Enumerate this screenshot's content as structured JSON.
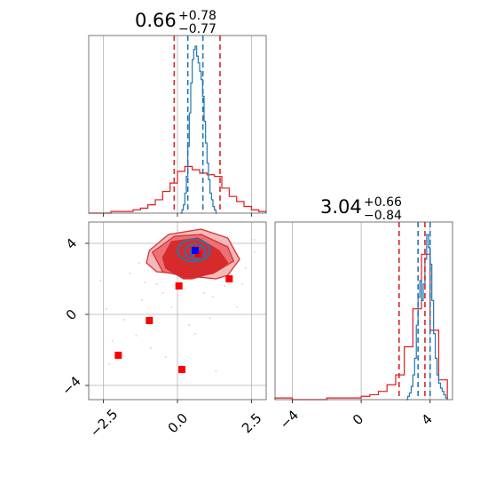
{
  "colors": {
    "red": "#e31a1c",
    "red_dark": "#d62728",
    "blue": "#1f77b4",
    "marker_blue": "#0000ff",
    "marker_red": "#ff0000",
    "grid": "#b0b0b0",
    "axis": "#555555"
  },
  "chart_data": [
    {
      "type": "histogram",
      "panel": "top-left",
      "title_value": "0.66",
      "title_plus": "+0.78",
      "title_minus": "−0.77",
      "xlim": [
        -3.0,
        3.0
      ],
      "grid": true,
      "red_lines": [
        -0.11,
        1.44
      ],
      "blue_lines": [
        0.35,
        0.86
      ],
      "series": [
        {
          "color": "red",
          "bin_edges": [
            -3.0,
            -2.75,
            -2.5,
            -2.25,
            -2.0,
            -1.75,
            -1.5,
            -1.25,
            -1.0,
            -0.75,
            -0.5,
            -0.25,
            0.0,
            0.25,
            0.5,
            0.75,
            1.0,
            1.25,
            1.5,
            1.75,
            2.0,
            2.25,
            2.5,
            2.75,
            3.0
          ],
          "heights": [
            0.0,
            0.0,
            0.0,
            0.01,
            0.01,
            0.01,
            0.02,
            0.03,
            0.05,
            0.08,
            0.13,
            0.18,
            0.25,
            0.28,
            0.26,
            0.24,
            0.23,
            0.22,
            0.15,
            0.1,
            0.07,
            0.04,
            0.02,
            0.01
          ]
        },
        {
          "color": "blue",
          "bin_edges": [
            0.1,
            0.15,
            0.2,
            0.25,
            0.3,
            0.35,
            0.4,
            0.45,
            0.5,
            0.55,
            0.6,
            0.65,
            0.7,
            0.75,
            0.8,
            0.85,
            0.9,
            0.95,
            1.0,
            1.05,
            1.1,
            1.15,
            1.2,
            1.25,
            1.3,
            1.35
          ],
          "heights": [
            0.0,
            0.02,
            0.05,
            0.12,
            0.22,
            0.4,
            0.6,
            0.78,
            0.92,
            0.98,
            1.0,
            0.94,
            0.9,
            0.85,
            0.8,
            0.7,
            0.55,
            0.42,
            0.3,
            0.2,
            0.12,
            0.08,
            0.04,
            0.02,
            0.0
          ]
        }
      ]
    },
    {
      "type": "histogram",
      "panel": "bottom-right",
      "title_value": "3.04",
      "title_plus": "+0.66",
      "title_minus": "−0.84",
      "xlim": [
        -5.0,
        5.3
      ],
      "xticks": [
        -4,
        0,
        4
      ],
      "xtick_labels": [
        "−4",
        "0",
        "4"
      ],
      "grid": true,
      "red_lines": [
        2.2,
        3.7
      ],
      "blue_lines": [
        3.3,
        4.0
      ],
      "series": [
        {
          "color": "red",
          "bin_edges": [
            -5.0,
            -4.5,
            -4.0,
            -3.5,
            -3.0,
            -2.5,
            -2.0,
            -1.5,
            -1.0,
            -0.5,
            0.0,
            0.5,
            1.0,
            1.5,
            2.0,
            2.5,
            3.0,
            3.5,
            4.0,
            4.5,
            5.0
          ],
          "heights": [
            0.01,
            0.01,
            0.0,
            0.0,
            0.0,
            0.0,
            0.01,
            0.01,
            0.01,
            0.01,
            0.02,
            0.03,
            0.05,
            0.09,
            0.15,
            0.32,
            0.55,
            0.88,
            0.42,
            0.12
          ]
        },
        {
          "color": "blue",
          "bin_edges": [
            2.6,
            2.7,
            2.8,
            2.9,
            3.0,
            3.1,
            3.2,
            3.3,
            3.4,
            3.5,
            3.6,
            3.7,
            3.8,
            3.9,
            4.0,
            4.1,
            4.2,
            4.3,
            4.4,
            4.5,
            4.6,
            4.7,
            4.8,
            4.9,
            5.0
          ],
          "heights": [
            0.0,
            0.02,
            0.04,
            0.08,
            0.15,
            0.25,
            0.45,
            0.62,
            0.72,
            0.6,
            0.7,
            0.85,
            1.0,
            0.92,
            0.82,
            0.6,
            0.4,
            0.25,
            0.15,
            0.1,
            0.07,
            0.05,
            0.03,
            0.01
          ]
        }
      ]
    },
    {
      "type": "scatter",
      "panel": "bottom-left",
      "xlim": [
        -3.0,
        3.0
      ],
      "ylim": [
        -4.8,
        5.2
      ],
      "xticks": [
        -2.5,
        0.0,
        2.5
      ],
      "xtick_labels": [
        "−2.5",
        "0.0",
        "2.5"
      ],
      "yticks": [
        4,
        0,
        -4
      ],
      "ytick_labels": [
        "4",
        "0",
        "−4"
      ],
      "grid": true,
      "contour_levels": [
        {
          "fill": "light",
          "points": [
            [
              -0.95,
              3.6
            ],
            [
              -0.3,
              4.5
            ],
            [
              0.8,
              4.8
            ],
            [
              1.7,
              4.3
            ],
            [
              2.1,
              3.1
            ],
            [
              1.7,
              2.2
            ],
            [
              1.3,
              2.0
            ],
            [
              0.7,
              2.1
            ],
            [
              0.0,
              2.3
            ],
            [
              -0.7,
              2.4
            ],
            [
              -1.05,
              2.9
            ]
          ]
        },
        {
          "fill": "mid",
          "points": [
            [
              -0.85,
              3.5
            ],
            [
              -0.1,
              4.4
            ],
            [
              0.8,
              4.5
            ],
            [
              1.7,
              3.8
            ],
            [
              1.9,
              3.0
            ],
            [
              1.2,
              2.3
            ],
            [
              0.4,
              2.1
            ],
            [
              -0.5,
              2.4
            ]
          ]
        },
        {
          "fill": "dark",
          "points": [
            [
              -0.2,
              4.1
            ],
            [
              0.7,
              4.3
            ],
            [
              1.4,
              3.6
            ],
            [
              1.7,
              2.9
            ],
            [
              1.3,
              2.4
            ],
            [
              0.5,
              2.0
            ],
            [
              0.2,
              2.0
            ],
            [
              -0.4,
              2.6
            ],
            [
              -0.5,
              3.2
            ]
          ]
        }
      ],
      "blue_contours": [
        {
          "cx": 0.55,
          "cy": 3.6,
          "rx": 0.55,
          "ry": 0.62
        },
        {
          "cx": 0.6,
          "cy": 3.55,
          "rx": 0.35,
          "ry": 0.4
        },
        {
          "cx": 0.62,
          "cy": 3.5,
          "rx": 0.18,
          "ry": 0.2
        }
      ],
      "markers_red": [
        [
          -2.0,
          -2.3
        ],
        [
          -0.95,
          -0.35
        ],
        [
          0.15,
          -3.1
        ],
        [
          0.05,
          1.6
        ],
        [
          1.75,
          2.0
        ],
        [
          0.7,
          3.4
        ]
      ],
      "markers_blue": [
        [
          0.6,
          3.6
        ]
      ],
      "scatter_points": [
        [
          -2.2,
          -1.5
        ],
        [
          -1.8,
          -0.3
        ],
        [
          -1.2,
          0.8
        ],
        [
          -0.5,
          1.2
        ],
        [
          1.2,
          1.0
        ],
        [
          2.2,
          1.7
        ],
        [
          2.6,
          3.5
        ],
        [
          -2.6,
          1.9
        ],
        [
          -1.4,
          -1.2
        ],
        [
          0.4,
          -0.6
        ],
        [
          1.1,
          -0.2
        ],
        [
          -0.9,
          -1.9
        ],
        [
          -1.1,
          1.8
        ],
        [
          -2.4,
          0.3
        ],
        [
          2.0,
          0.4
        ],
        [
          1.6,
          1.6
        ],
        [
          -0.2,
          0.4
        ],
        [
          -0.7,
          1.7
        ],
        [
          0.9,
          1.2
        ],
        [
          2.3,
          2.6
        ],
        [
          -1.6,
          2.3
        ],
        [
          -2.3,
          -2.8
        ],
        [
          0.6,
          -1.1
        ],
        [
          -0.4,
          -2.4
        ],
        [
          1.3,
          -3.2
        ],
        [
          -1.3,
          2.9
        ],
        [
          2.6,
          4.2
        ]
      ]
    }
  ]
}
